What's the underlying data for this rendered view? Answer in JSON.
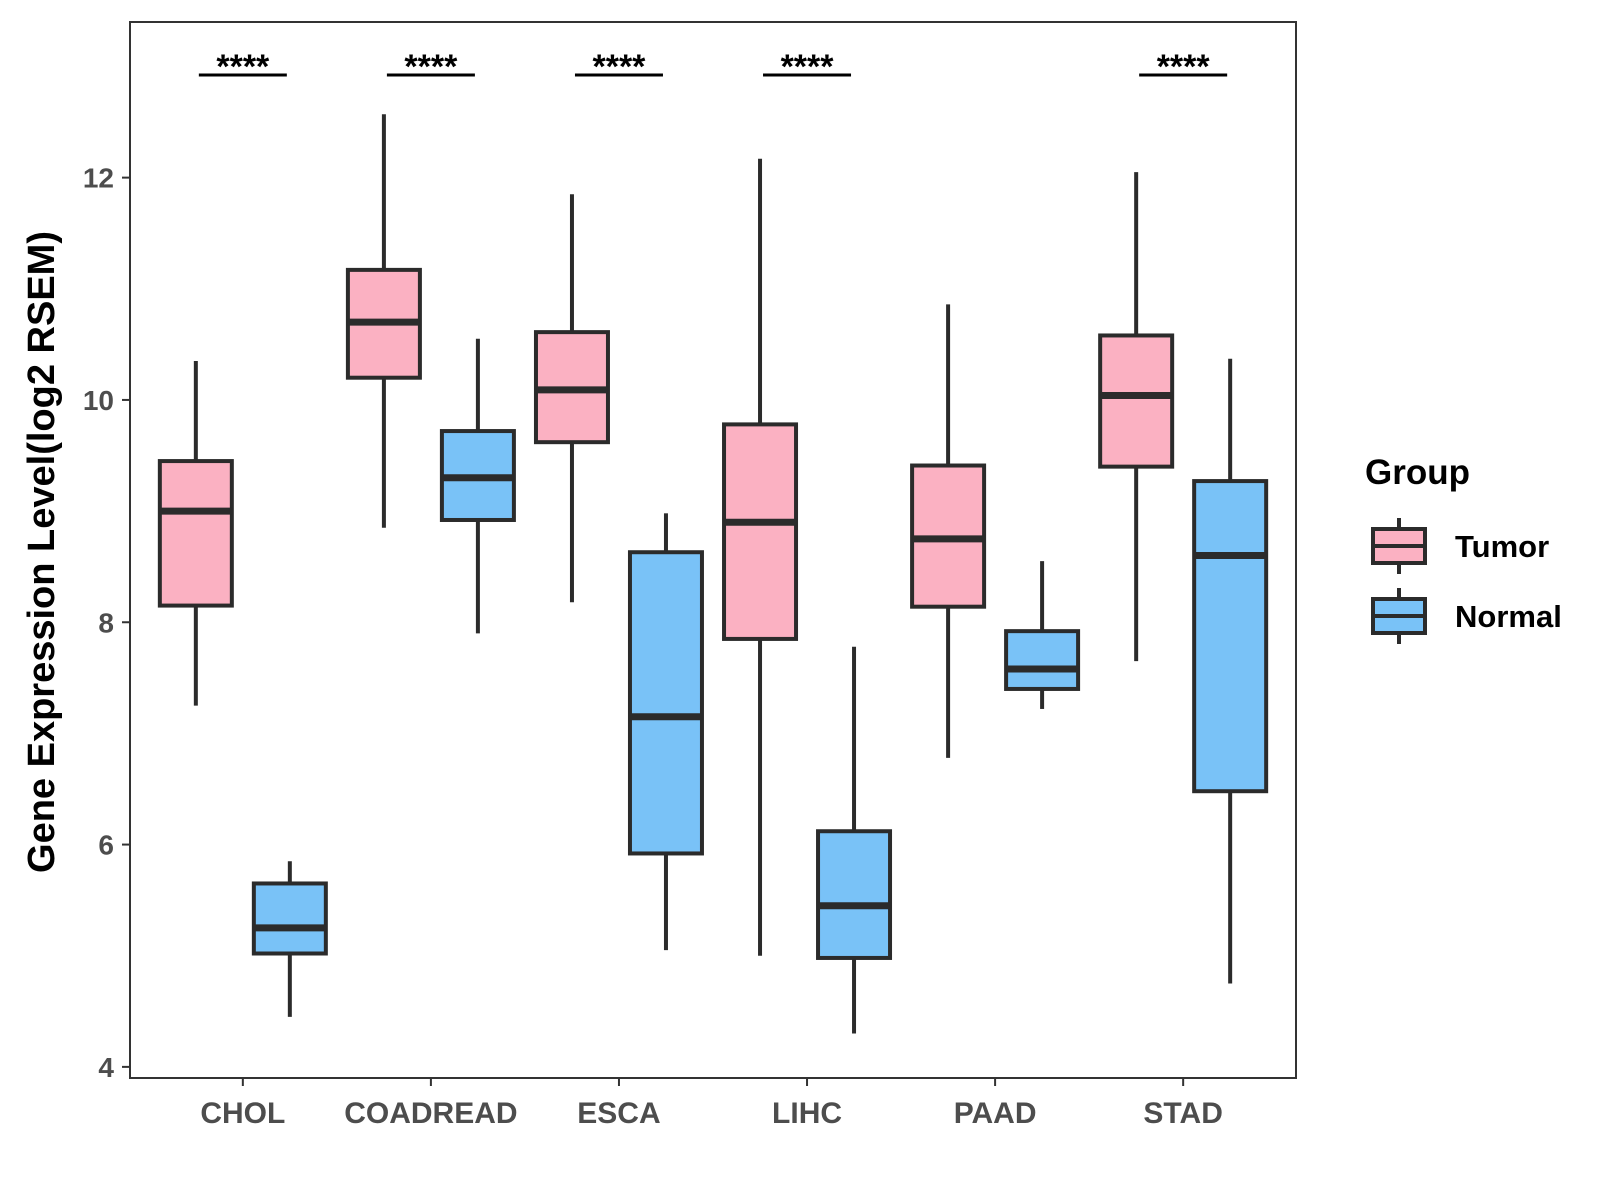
{
  "chart_data": {
    "type": "boxplot",
    "title": "",
    "xlabel": "",
    "ylabel": "Gene Expression Level(log2 RSEM)",
    "ylim": [
      3.9,
      13.4
    ],
    "yticks": [
      4,
      6,
      8,
      10,
      12
    ],
    "categories": [
      "CHOL",
      "COADREAD",
      "ESCA",
      "LIHC",
      "PAAD",
      "STAD"
    ],
    "series": [
      {
        "name": "Tumor",
        "color": "#fbb1c2",
        "boxes": [
          {
            "min": 7.25,
            "q1": 8.15,
            "median": 9.0,
            "q3": 9.45,
            "max": 10.35
          },
          {
            "min": 8.85,
            "q1": 10.2,
            "median": 10.7,
            "q3": 11.17,
            "max": 12.57
          },
          {
            "min": 8.18,
            "q1": 9.62,
            "median": 10.09,
            "q3": 10.61,
            "max": 11.85
          },
          {
            "min": 5.0,
            "q1": 7.85,
            "median": 8.9,
            "q3": 9.78,
            "max": 12.17
          },
          {
            "min": 6.78,
            "q1": 8.14,
            "median": 8.75,
            "q3": 9.41,
            "max": 10.86
          },
          {
            "min": 7.65,
            "q1": 9.4,
            "median": 10.04,
            "q3": 10.58,
            "max": 12.05
          }
        ]
      },
      {
        "name": "Normal",
        "color": "#79c2f7",
        "boxes": [
          {
            "min": 4.45,
            "q1": 5.02,
            "median": 5.25,
            "q3": 5.65,
            "max": 5.85
          },
          {
            "min": 7.9,
            "q1": 8.92,
            "median": 9.3,
            "q3": 9.72,
            "max": 10.55
          },
          {
            "min": 5.05,
            "q1": 5.92,
            "median": 7.15,
            "q3": 8.63,
            "max": 8.98
          },
          {
            "min": 4.3,
            "q1": 4.98,
            "median": 5.45,
            "q3": 6.12,
            "max": 7.78
          },
          {
            "min": 7.22,
            "q1": 7.4,
            "median": 7.58,
            "q3": 7.92,
            "max": 8.55
          },
          {
            "min": 4.75,
            "q1": 6.48,
            "median": 8.6,
            "q3": 9.27,
            "max": 10.37
          }
        ]
      }
    ],
    "significance": [
      "****",
      "****",
      "****",
      "****",
      "",
      "****"
    ],
    "legend": {
      "title": "Group",
      "position": "right"
    },
    "grid": false
  }
}
